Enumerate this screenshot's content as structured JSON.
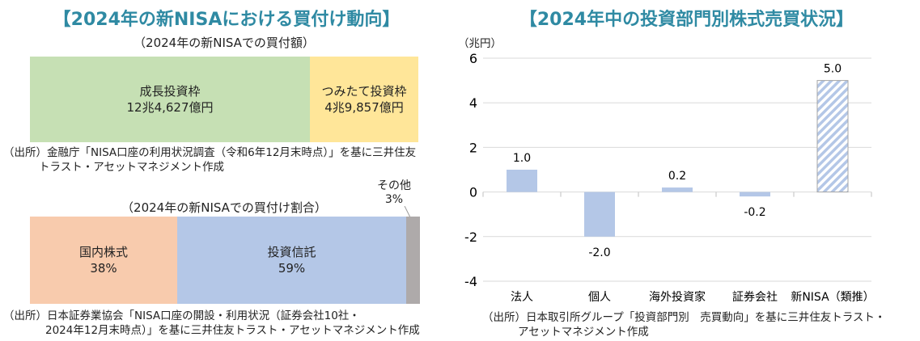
{
  "left": {
    "title": "【2024年の新NISAにおける買付け動向】",
    "amount": {
      "subtitle": "（2024年の新NISAでの買付額）",
      "segments": [
        {
          "label": "成長投資枠",
          "value": "12兆4,627億円",
          "color": "#c6e0b4"
        },
        {
          "label": "つみたて投資枠",
          "value": "4兆9,857億円",
          "color": "#ffe699"
        }
      ],
      "source1": "（出所）金融庁「NISA口座の利用状況調査（令和6年12月末時点）」を基に三井住友",
      "source2": "トラスト・アセットマネジメント作成"
    },
    "ratio": {
      "subtitle": "（2024年の新NISAでの買付け割合）",
      "segments": [
        {
          "label": "国内株式",
          "value": "38%",
          "pct": 38,
          "color": "#f8cbad"
        },
        {
          "label": "投資信託",
          "value": "59%",
          "pct": 59,
          "color": "#b4c7e7"
        },
        {
          "label": "その他",
          "value": "3%",
          "pct": 3,
          "color": "#aeaaaa"
        }
      ],
      "source1": "（出所）日本証券業協会「NISA口座の開設・利用状況（証券会社10社・",
      "source2": "2024年12月末時点）」を基に三井住友トラスト・アセットマネジメント作成"
    }
  },
  "chart_data": {
    "type": "bar",
    "title": "【2024年中の投資部門別株式売買状況】",
    "ylabel": "（兆円）",
    "categories": [
      "法人",
      "個人",
      "海外投資家",
      "証券会社",
      "新NISA（類推）"
    ],
    "values": [
      1.0,
      -2.0,
      0.2,
      -0.2,
      5.0
    ],
    "labels": [
      "1.0",
      "-2.0",
      "0.2",
      "-0.2",
      "5.0"
    ],
    "hatched": [
      false,
      false,
      false,
      false,
      true
    ],
    "ylim": [
      -4,
      6
    ],
    "yticks": [
      "6",
      "4",
      "2",
      "0",
      "-2",
      "-4"
    ],
    "grid": true,
    "bar_color": "#b4c7e7",
    "source1": "（出所）日本取引所グループ「投資部門別　売買動向」を基に三井住友トラスト・",
    "source2": "アセットマネジメント作成"
  }
}
